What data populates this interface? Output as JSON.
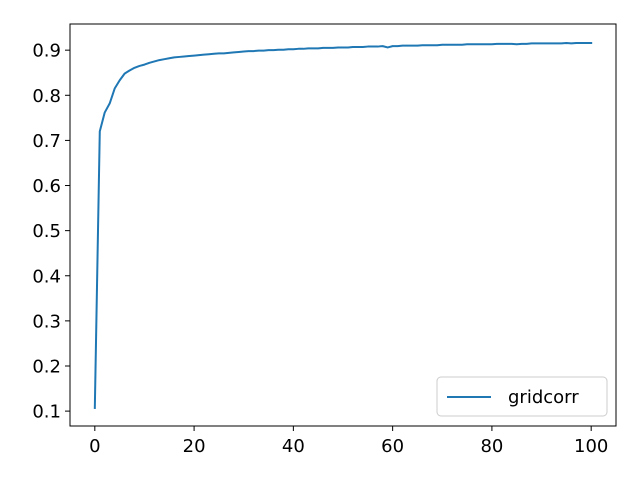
{
  "chart_data": {
    "type": "line",
    "title": "",
    "xlabel": "",
    "ylabel": "",
    "xlim": [
      -5,
      105
    ],
    "ylim": [
      0.067,
      0.958
    ],
    "x_ticks": [
      0,
      20,
      40,
      60,
      80,
      100
    ],
    "x_tick_labels": [
      "0",
      "20",
      "40",
      "60",
      "80",
      "100"
    ],
    "y_ticks": [
      0.1,
      0.2,
      0.3,
      0.4,
      0.5,
      0.6,
      0.7,
      0.8,
      0.9
    ],
    "y_tick_labels": [
      "0.1",
      "0.2",
      "0.3",
      "0.4",
      "0.5",
      "0.6",
      "0.7",
      "0.8",
      "0.9"
    ],
    "grid": false,
    "legend_position": "lower-right",
    "series": [
      {
        "name": "gridcorr",
        "color": "#1f77b4",
        "x": [
          0,
          1,
          2,
          3,
          4,
          5,
          6,
          7,
          8,
          9,
          10,
          11,
          12,
          13,
          14,
          15,
          16,
          17,
          18,
          19,
          20,
          21,
          22,
          23,
          24,
          25,
          26,
          27,
          28,
          29,
          30,
          31,
          32,
          33,
          34,
          35,
          36,
          37,
          38,
          39,
          40,
          41,
          42,
          43,
          44,
          45,
          46,
          47,
          48,
          49,
          50,
          51,
          52,
          53,
          54,
          55,
          56,
          57,
          58,
          59,
          60,
          61,
          62,
          63,
          64,
          65,
          66,
          67,
          68,
          69,
          70,
          71,
          72,
          73,
          74,
          75,
          76,
          77,
          78,
          79,
          80,
          81,
          82,
          83,
          84,
          85,
          86,
          87,
          88,
          89,
          90,
          91,
          92,
          93,
          94,
          95,
          96,
          97,
          98,
          99,
          100
        ],
        "values": [
          0.107,
          0.72,
          0.762,
          0.782,
          0.815,
          0.833,
          0.848,
          0.855,
          0.861,
          0.865,
          0.868,
          0.872,
          0.875,
          0.878,
          0.88,
          0.882,
          0.884,
          0.885,
          0.886,
          0.887,
          0.888,
          0.889,
          0.89,
          0.891,
          0.892,
          0.893,
          0.893,
          0.894,
          0.895,
          0.896,
          0.897,
          0.898,
          0.898,
          0.899,
          0.899,
          0.9,
          0.9,
          0.901,
          0.901,
          0.902,
          0.902,
          0.903,
          0.903,
          0.904,
          0.904,
          0.904,
          0.905,
          0.905,
          0.905,
          0.906,
          0.906,
          0.906,
          0.907,
          0.907,
          0.907,
          0.908,
          0.908,
          0.908,
          0.909,
          0.906,
          0.909,
          0.909,
          0.91,
          0.91,
          0.91,
          0.91,
          0.911,
          0.911,
          0.911,
          0.911,
          0.912,
          0.912,
          0.912,
          0.912,
          0.912,
          0.913,
          0.913,
          0.913,
          0.913,
          0.913,
          0.913,
          0.914,
          0.914,
          0.914,
          0.914,
          0.913,
          0.914,
          0.914,
          0.915,
          0.915,
          0.915,
          0.915,
          0.915,
          0.915,
          0.915,
          0.916,
          0.915,
          0.916,
          0.916,
          0.916,
          0.916
        ]
      }
    ]
  }
}
